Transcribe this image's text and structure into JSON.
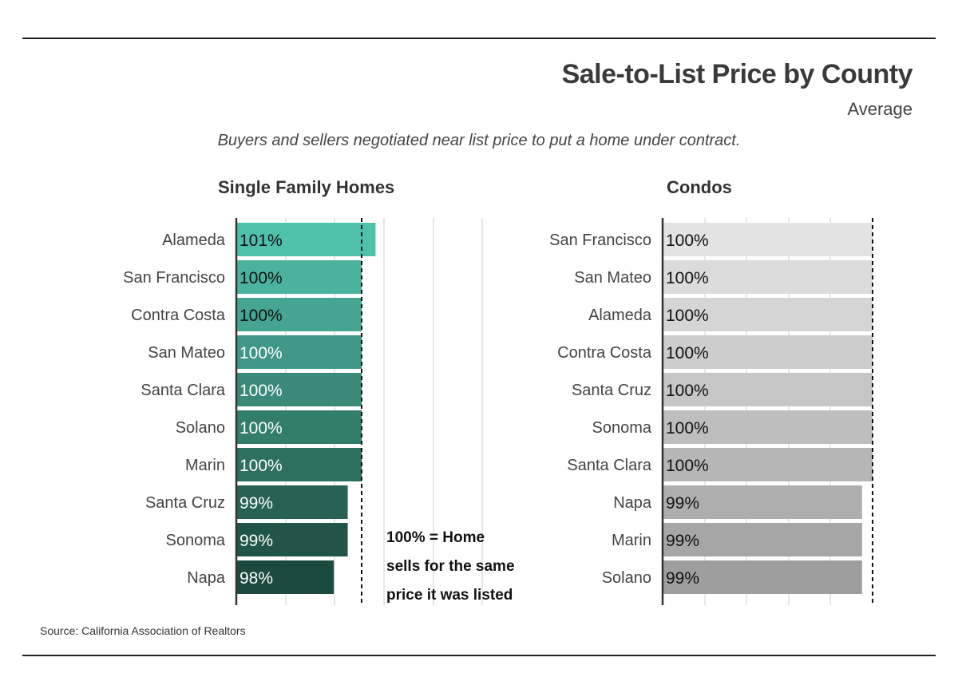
{
  "header": {
    "title": "Sale-to-List Price by County",
    "subtitle": "Average",
    "description": "Buyers and sellers negotiated near list price to put a home under contract."
  },
  "source": "Source:  California Association of Realtors",
  "annotation": {
    "line1": "100% = Home",
    "line2": "sells for the same",
    "line3": "price it was listed"
  },
  "chart_data": [
    {
      "type": "bar",
      "orientation": "horizontal",
      "title": "Single Family Homes",
      "categories": [
        "Alameda",
        "San Francisco",
        "Contra Costa",
        "San Mateo",
        "Santa Clara",
        "Solano",
        "Marin",
        "Santa Cruz",
        "Sonoma",
        "Napa"
      ],
      "values": [
        101,
        100,
        100,
        100,
        100,
        100,
        100,
        99,
        99,
        98
      ],
      "labels": [
        "101%",
        "100%",
        "100%",
        "100%",
        "100%",
        "100%",
        "100%",
        "99%",
        "99%",
        "98%"
      ],
      "reference_line": 100,
      "xlim": [
        91,
        106
      ],
      "colors": [
        "#4fc1ab",
        "#4bb29d",
        "#45a591",
        "#3f9785",
        "#398a79",
        "#337d6d",
        "#2d6f61",
        "#276255",
        "#215549",
        "#1c4a40"
      ],
      "grid": true
    },
    {
      "type": "bar",
      "orientation": "horizontal",
      "title": "Condos",
      "categories": [
        "San Francisco",
        "San Mateo",
        "Alameda",
        "Contra Costa",
        "Santa Cruz",
        "Sonoma",
        "Santa Clara",
        "Napa",
        "Marin",
        "Solano"
      ],
      "values": [
        100,
        100,
        100,
        100,
        100,
        100,
        100,
        99,
        99,
        99
      ],
      "labels": [
        "100%",
        "100%",
        "100%",
        "100%",
        "100%",
        "100%",
        "100%",
        "99%",
        "99%",
        "99%"
      ],
      "reference_line": 100,
      "xlim": [
        80,
        100
      ],
      "colors": [
        "#e3e3e3",
        "#dcdcdc",
        "#d5d5d5",
        "#cdcdcd",
        "#c6c6c6",
        "#bebebe",
        "#b6b6b6",
        "#aeaeae",
        "#a6a6a6",
        "#9e9e9e"
      ],
      "grid": true
    }
  ]
}
